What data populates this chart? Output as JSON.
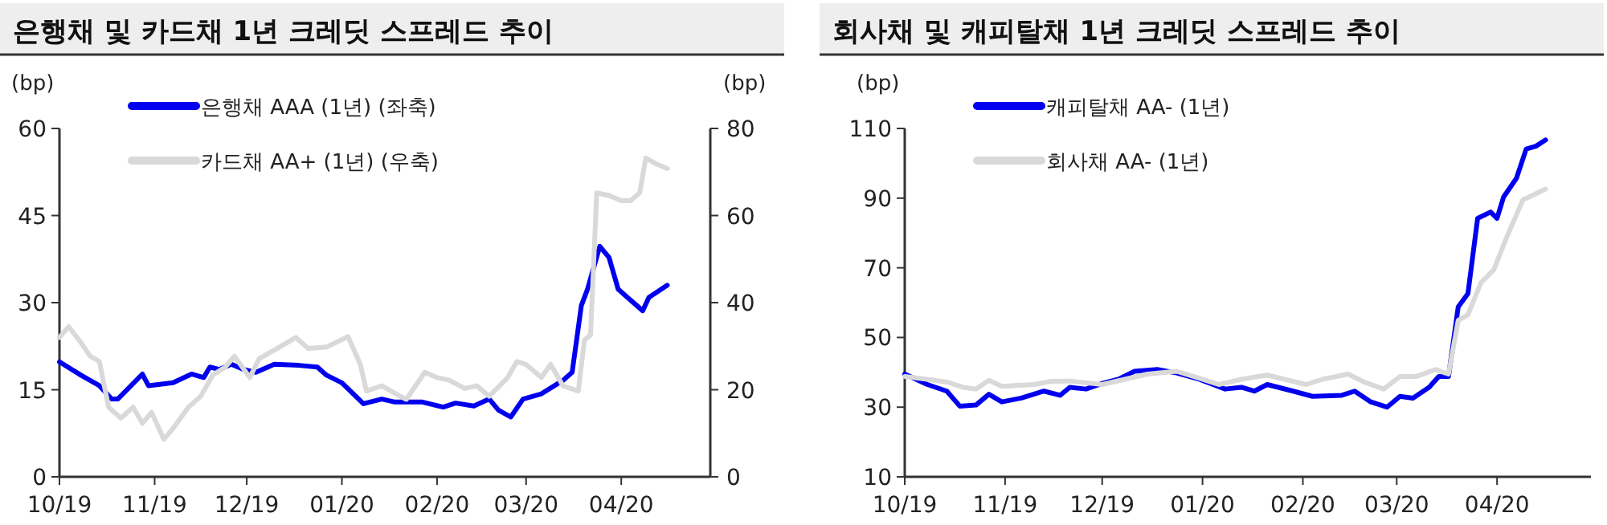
{
  "chart_data": [
    {
      "type": "line",
      "title": "은행채 및 카드채 1년 크레딧 스프레드 추이",
      "ylabel": "(bp)",
      "y2label": "(bp)",
      "legend": "top left",
      "xlim": [
        "2019-10-01",
        "2020-04-30"
      ],
      "xticks": [
        {
          "value": "2019-10-01",
          "label": "10/19"
        },
        {
          "value": "2019-11-01",
          "label": "11/19"
        },
        {
          "value": "2019-12-01",
          "label": "12/19"
        },
        {
          "value": "2020-01-01",
          "label": "01/20"
        },
        {
          "value": "2020-02-01",
          "label": "02/20"
        },
        {
          "value": "2020-03-01",
          "label": "03/20"
        },
        {
          "value": "2020-04-01",
          "label": "04/20"
        }
      ],
      "ylim": [
        0,
        60
      ],
      "yticks": [
        0,
        15,
        30,
        45,
        60
      ],
      "y2lim": [
        0,
        80
      ],
      "y2ticks": [
        0,
        20,
        40,
        60,
        80
      ],
      "series": [
        {
          "name": "은행채 AAA (1년) (좌축)",
          "color": "#0000ee",
          "x": [
            "2019-10-01",
            "2019-10-08",
            "2019-10-14",
            "2019-10-18",
            "2019-10-20",
            "2019-10-26",
            "2019-10-28",
            "2019-10-30",
            "2019-11-07",
            "2019-11-13",
            "2019-11-17",
            "2019-11-19",
            "2019-11-22",
            "2019-11-26",
            "2019-11-30",
            "2019-12-04",
            "2019-12-10",
            "2019-12-18",
            "2019-12-24",
            "2019-12-27",
            "2020-01-01",
            "2020-01-08",
            "2020-01-14",
            "2020-01-18",
            "2020-01-27",
            "2020-02-03",
            "2020-02-07",
            "2020-02-13",
            "2020-02-18",
            "2020-02-21",
            "2020-02-25",
            "2020-02-29",
            "2020-03-06",
            "2020-03-13",
            "2020-03-16",
            "2020-03-19",
            "2020-03-21",
            "2020-03-25",
            "2020-03-28",
            "2020-03-31",
            "2020-04-03",
            "2020-04-08",
            "2020-04-10",
            "2020-04-16"
          ],
          "values": [
            19.8,
            17.5,
            15.7,
            13.4,
            13.4,
            16.6,
            17.7,
            15.7,
            16.2,
            17.7,
            17.1,
            18.9,
            18.5,
            19.4,
            18.5,
            18.0,
            19.4,
            19.2,
            18.9,
            17.5,
            16.2,
            12.6,
            13.4,
            12.9,
            12.9,
            12.0,
            12.7,
            12.2,
            13.4,
            11.5,
            10.3,
            13.4,
            14.3,
            16.6,
            18.0,
            29.5,
            32.3,
            39.7,
            37.8,
            32.3,
            30.9,
            28.6,
            30.9,
            33.0
          ]
        },
        {
          "name": "카드채 AA+ (1년) (우축)",
          "color": "#d9d9d9",
          "axis": "y2",
          "x": [
            "2019-10-01",
            "2019-10-04",
            "2019-10-08",
            "2019-10-11",
            "2019-10-14",
            "2019-10-17",
            "2019-10-21",
            "2019-10-25",
            "2019-10-28",
            "2019-10-31",
            "2019-11-04",
            "2019-11-07",
            "2019-11-12",
            "2019-11-16",
            "2019-11-20",
            "2019-11-24",
            "2019-11-27",
            "2019-12-02",
            "2019-12-05",
            "2019-12-11",
            "2019-12-17",
            "2019-12-21",
            "2019-12-27",
            "2020-01-03",
            "2020-01-07",
            "2020-01-09",
            "2020-01-14",
            "2020-01-20",
            "2020-01-22",
            "2020-01-28",
            "2020-02-01",
            "2020-02-05",
            "2020-02-10",
            "2020-02-14",
            "2020-02-18",
            "2020-02-24",
            "2020-02-27",
            "2020-03-01",
            "2020-03-06",
            "2020-03-09",
            "2020-03-13",
            "2020-03-18",
            "2020-03-20",
            "2020-03-22",
            "2020-03-24",
            "2020-03-28",
            "2020-04-01",
            "2020-04-04",
            "2020-04-07",
            "2020-04-09",
            "2020-04-12",
            "2020-04-16"
          ],
          "values": [
            32.0,
            34.5,
            30.8,
            27.7,
            26.5,
            16.0,
            13.5,
            16.0,
            12.3,
            14.8,
            8.6,
            11.1,
            16.0,
            18.5,
            23.4,
            25.2,
            27.7,
            22.8,
            27.1,
            29.5,
            32.0,
            29.5,
            29.8,
            32.2,
            25.8,
            19.7,
            20.9,
            18.5,
            17.8,
            24.0,
            22.8,
            22.2,
            20.3,
            20.9,
            18.5,
            22.8,
            26.5,
            25.8,
            22.8,
            25.8,
            20.9,
            19.7,
            31.4,
            32.6,
            65.2,
            64.6,
            63.4,
            63.4,
            65.2,
            73.2,
            72.0,
            70.8
          ]
        }
      ]
    },
    {
      "type": "line",
      "title": "회사채 및 캐피탈채 1년 크레딧 스프레드 추이",
      "ylabel": "(bp)",
      "legend": "top left",
      "xlim": [
        "2019-10-01",
        "2020-04-30"
      ],
      "xticks": [
        {
          "value": "2019-10-01",
          "label": "10/19"
        },
        {
          "value": "2019-11-01",
          "label": "11/19"
        },
        {
          "value": "2019-12-01",
          "label": "12/19"
        },
        {
          "value": "2020-01-01",
          "label": "01/20"
        },
        {
          "value": "2020-02-01",
          "label": "02/20"
        },
        {
          "value": "2020-03-01",
          "label": "03/20"
        },
        {
          "value": "2020-04-01",
          "label": "04/20"
        }
      ],
      "ylim": [
        10,
        110
      ],
      "yticks": [
        10,
        30,
        50,
        70,
        90,
        110
      ],
      "series": [
        {
          "name": "캐피탈채 AA- (1년)",
          "color": "#0000ee",
          "x": [
            "2019-10-01",
            "2019-10-08",
            "2019-10-14",
            "2019-10-18",
            "2019-10-23",
            "2019-10-27",
            "2019-10-31",
            "2019-11-06",
            "2019-11-13",
            "2019-11-18",
            "2019-11-21",
            "2019-11-26",
            "2019-12-01",
            "2019-12-06",
            "2019-12-11",
            "2019-12-18",
            "2019-12-24",
            "2019-12-31",
            "2020-01-08",
            "2020-01-13",
            "2020-01-17",
            "2020-01-21",
            "2020-01-29",
            "2020-02-04",
            "2020-02-13",
            "2020-02-17",
            "2020-02-22",
            "2020-02-27",
            "2020-03-02",
            "2020-03-06",
            "2020-03-11",
            "2020-03-14",
            "2020-03-17",
            "2020-03-20",
            "2020-03-23",
            "2020-03-26",
            "2020-03-30",
            "2020-04-01",
            "2020-04-03",
            "2020-04-07",
            "2020-04-10",
            "2020-04-13",
            "2020-04-16"
          ],
          "values": [
            39.5,
            36.5,
            34.6,
            30.3,
            30.6,
            33.7,
            31.5,
            32.6,
            34.6,
            33.4,
            35.7,
            35.2,
            36.8,
            38.0,
            40.3,
            40.8,
            39.8,
            38.0,
            35.2,
            35.7,
            34.6,
            36.5,
            34.6,
            33.1,
            33.4,
            34.6,
            31.5,
            30.0,
            33.1,
            32.6,
            35.7,
            38.8,
            38.8,
            58.8,
            62.6,
            84.2,
            86.0,
            84.2,
            90.3,
            95.7,
            104.1,
            104.9,
            106.7
          ]
        },
        {
          "name": "회사채 AA- (1년)",
          "color": "#d9d9d9",
          "x": [
            "2019-10-01",
            "2019-10-08",
            "2019-10-14",
            "2019-10-19",
            "2019-10-23",
            "2019-10-27",
            "2019-10-31",
            "2019-11-10",
            "2019-11-15",
            "2019-11-21",
            "2019-12-01",
            "2019-12-08",
            "2019-12-15",
            "2019-12-24",
            "2019-12-31",
            "2020-01-06",
            "2020-01-13",
            "2020-01-21",
            "2020-02-02",
            "2020-02-07",
            "2020-02-15",
            "2020-02-20",
            "2020-02-26",
            "2020-03-02",
            "2020-03-07",
            "2020-03-13",
            "2020-03-17",
            "2020-03-20",
            "2020-03-23",
            "2020-03-27",
            "2020-03-31",
            "2020-04-04",
            "2020-04-09",
            "2020-04-16"
          ],
          "values": [
            38.8,
            38.0,
            37.2,
            35.7,
            35.2,
            37.7,
            36.0,
            36.5,
            37.4,
            37.5,
            36.5,
            38.0,
            39.5,
            40.3,
            38.3,
            36.5,
            38.0,
            39.2,
            36.5,
            38.0,
            39.5,
            37.2,
            35.2,
            38.8,
            38.8,
            40.8,
            39.5,
            54.9,
            56.5,
            65.7,
            69.5,
            78.8,
            89.5,
            92.6
          ]
        }
      ]
    }
  ]
}
